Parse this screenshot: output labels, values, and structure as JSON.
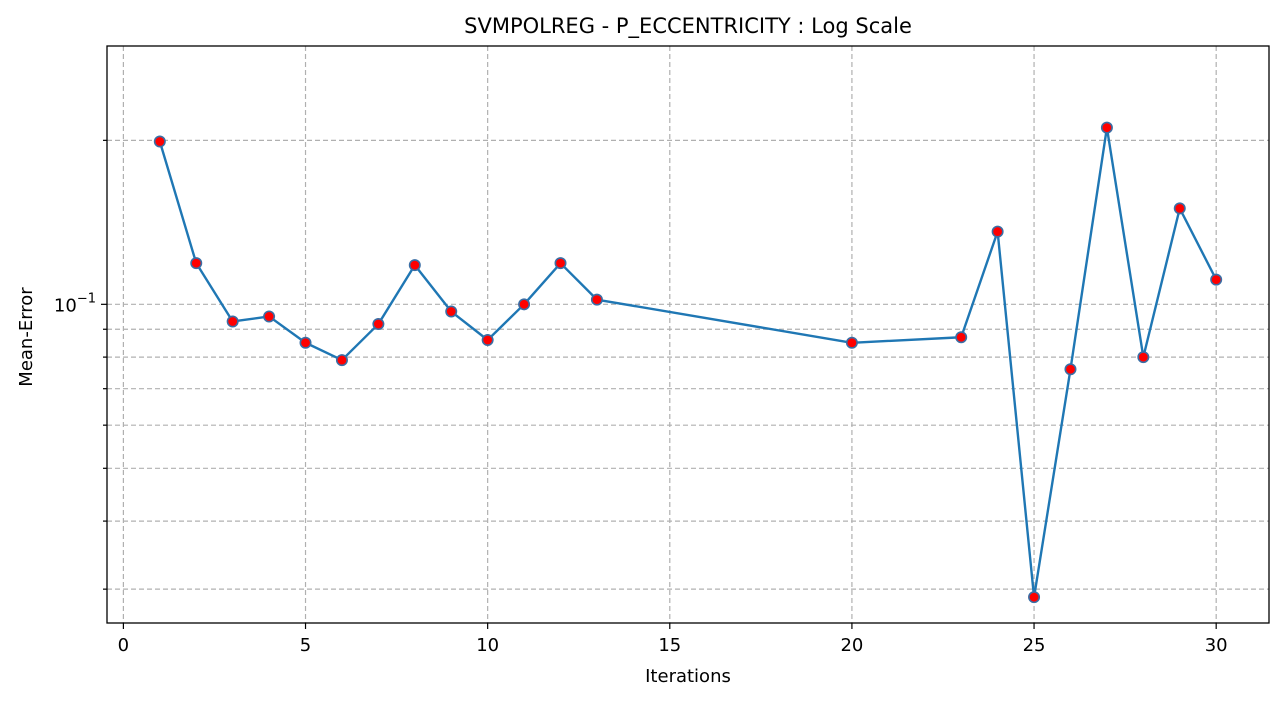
{
  "chart_data": {
    "type": "line",
    "title": "SVMPOLREG - P_ECCENTRICITY : Log Scale",
    "xlabel": "Iterations",
    "ylabel": "Mean-Error",
    "y_scale": "log",
    "xlim": [
      -0.45,
      31.45
    ],
    "ylim": [
      0.026,
      0.298
    ],
    "grid": true,
    "x_ticks": [
      0,
      5,
      10,
      15,
      20,
      25,
      30
    ],
    "y_major_ticks": [
      0.1
    ],
    "y_major_tick_labels": [
      {
        "base": "10",
        "exp": "−1"
      }
    ],
    "y_minor_ticks": [
      0.03,
      0.04,
      0.05,
      0.06,
      0.07,
      0.08,
      0.09,
      0.2
    ],
    "line_color": "#1f77b4",
    "marker_face_color": "#ff0000",
    "marker_edge_color": "#3a6ea5",
    "series": [
      {
        "x": [
          1,
          2,
          3,
          4,
          5,
          6,
          7,
          8,
          9,
          10,
          11,
          12,
          13,
          20,
          23,
          24,
          25,
          26,
          27,
          28,
          29,
          30
        ],
        "values": [
          0.199,
          0.119,
          0.093,
          0.095,
          0.085,
          0.079,
          0.092,
          0.118,
          0.097,
          0.086,
          0.1,
          0.119,
          0.102,
          0.085,
          0.087,
          0.136,
          0.029,
          0.076,
          0.211,
          0.08,
          0.15,
          0.111
        ]
      }
    ]
  }
}
